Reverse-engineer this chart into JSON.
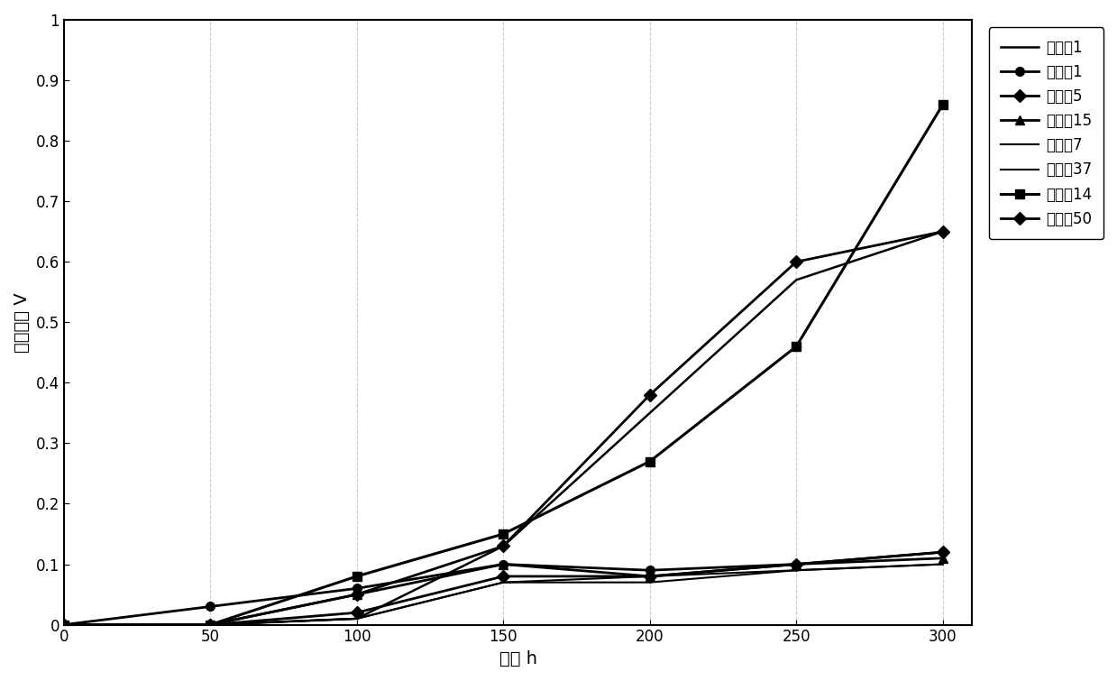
{
  "x": [
    0,
    50,
    100,
    150,
    200,
    250,
    300
  ],
  "series_order": [
    "对比例1",
    "实施例1",
    "对比例5",
    "实施例15",
    "对比例7",
    "实施例37",
    "对比例14",
    "实施例50"
  ],
  "series_y": {
    "对比例1": [
      0,
      0.0,
      0.01,
      0.13,
      0.35,
      0.57,
      0.65
    ],
    "实施例1": [
      0,
      0.03,
      0.06,
      0.1,
      0.09,
      0.1,
      0.12
    ],
    "对比例5": [
      0,
      0.0,
      0.05,
      0.13,
      0.38,
      0.6,
      0.65
    ],
    "实施例15": [
      0,
      0.0,
      0.05,
      0.1,
      0.08,
      0.1,
      0.11
    ],
    "对比例7": [
      0,
      0.0,
      0.01,
      0.07,
      0.08,
      0.09,
      0.1
    ],
    "实施例37": [
      0,
      0.0,
      0.01,
      0.07,
      0.07,
      0.09,
      0.1
    ],
    "对比例14": [
      0,
      0.0,
      0.08,
      0.15,
      0.27,
      0.46,
      0.86
    ],
    "实施例50": [
      0,
      0.0,
      0.02,
      0.08,
      0.08,
      0.1,
      0.12
    ]
  },
  "markers": {
    "对比例1": "None",
    "实施例1": "o",
    "对比例5": "D",
    "实施例15": "^",
    "对比例7": "None",
    "实施例37": "None",
    "对比例14": "s",
    "实施例50": "D"
  },
  "linewidths": {
    "对比例1": 1.8,
    "实施例1": 2.0,
    "对比例5": 2.0,
    "实施例15": 2.0,
    "对比例7": 1.5,
    "实施例37": 1.5,
    "对比例14": 2.2,
    "实施例50": 2.0
  },
  "xlabel": "时间 h",
  "ylabel": "电压变化 V",
  "xlim": [
    0,
    310
  ],
  "ylim": [
    0,
    1.0
  ],
  "xticks": [
    0,
    50,
    100,
    150,
    200,
    250,
    300
  ],
  "yticks": [
    0,
    0.1,
    0.2,
    0.3,
    0.4,
    0.5,
    0.6,
    0.7,
    0.8,
    0.9,
    1
  ],
  "background_color": "#ffffff",
  "markersize": 7,
  "grid_linestyle": "--",
  "grid_color": "#aaaaaa",
  "grid_alpha": 0.6,
  "grid_linewidth": 0.8,
  "legend_fontsize": 12,
  "axis_fontsize": 14,
  "tick_fontsize": 12
}
